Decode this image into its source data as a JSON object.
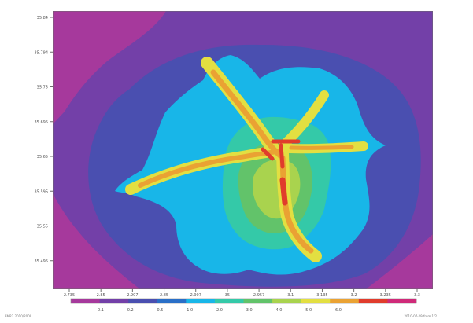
{
  "chart_data": {
    "type": "heatmap",
    "title": "",
    "xlabel": "",
    "ylabel": "",
    "y_ticks": [
      "35.84",
      "35.794",
      "35.75",
      "35.695",
      "35.65",
      "35.595",
      "35.55",
      "35.495"
    ],
    "x_ticks": [
      "2.735",
      "2.85",
      "2.907",
      "2.85",
      "2.907",
      "35",
      "2.957",
      "3.1",
      "3.135",
      "3.2",
      "3.235",
      "3.3"
    ],
    "colorbar": {
      "colors": [
        "#a6399c",
        "#7340a8",
        "#4a4fb0",
        "#2a6fc7",
        "#18b6e8",
        "#34c9a8",
        "#62c36a",
        "#a9d34e",
        "#e3df41",
        "#eaa233",
        "#e03c2c",
        "#cf2a79"
      ],
      "labels": [
        "0.1",
        "0.2",
        "0.5",
        "1.0",
        "2.0",
        "3.0",
        "4.0",
        "5.0",
        "6.0"
      ]
    },
    "grid": false,
    "legend": "bottom colorbar"
  },
  "footer": {
    "left": "EMR2 2010/2009",
    "right": "2010-07-29 from 1/2"
  }
}
